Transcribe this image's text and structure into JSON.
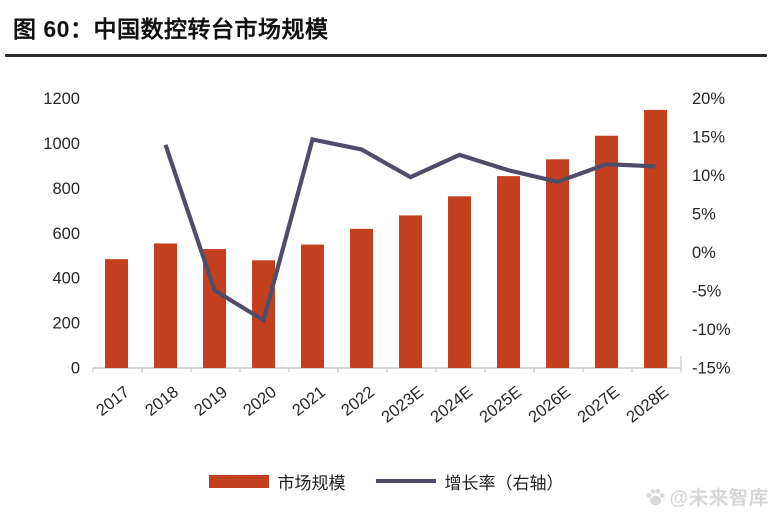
{
  "header": {
    "title": "图 60：中国数控转台市场规模"
  },
  "legend": {
    "items": [
      {
        "label": "市场规模",
        "swatch": "bar"
      },
      {
        "label": "增长率（右轴）",
        "swatch": "line"
      }
    ]
  },
  "watermark": {
    "icon": "paw-icon",
    "text": "@未来智库"
  },
  "colors": {
    "bar": "#C3401F",
    "line": "#4E4C69",
    "axis": "#C8C8C8",
    "tick_text": "#262626",
    "watermark": "#D7D7D7"
  },
  "chart_data": {
    "type": "combo-bar-line",
    "title": "图 60：中国数控转台市场规模",
    "categories": [
      "2017",
      "2018",
      "2019",
      "2020",
      "2021",
      "2022",
      "2023E",
      "2024E",
      "2025E",
      "2026E",
      "2027E",
      "2028E"
    ],
    "series": [
      {
        "name": "市场规模",
        "type": "bar",
        "axis": "left",
        "color": "#C3401F",
        "values": [
          485,
          555,
          530,
          480,
          550,
          620,
          680,
          765,
          855,
          930,
          1035,
          1150
        ]
      },
      {
        "name": "增长率（右轴）",
        "type": "line",
        "axis": "right",
        "color": "#4E4C69",
        "values": [
          null,
          14.0,
          -4.9,
          -8.8,
          14.7,
          13.4,
          9.8,
          12.7,
          10.7,
          9.2,
          11.5,
          11.2
        ]
      }
    ],
    "left_axis": {
      "min": 0,
      "max": 1200,
      "step": 200,
      "tick_labels": [
        "0",
        "200",
        "400",
        "600",
        "800",
        "1000",
        "1200"
      ]
    },
    "right_axis": {
      "min": -15,
      "max": 20,
      "step": 5,
      "tick_labels": [
        "-15%",
        "-10%",
        "-5%",
        "0%",
        "5%",
        "10%",
        "15%",
        "20%"
      ]
    },
    "grid": false,
    "legend_position": "bottom"
  }
}
